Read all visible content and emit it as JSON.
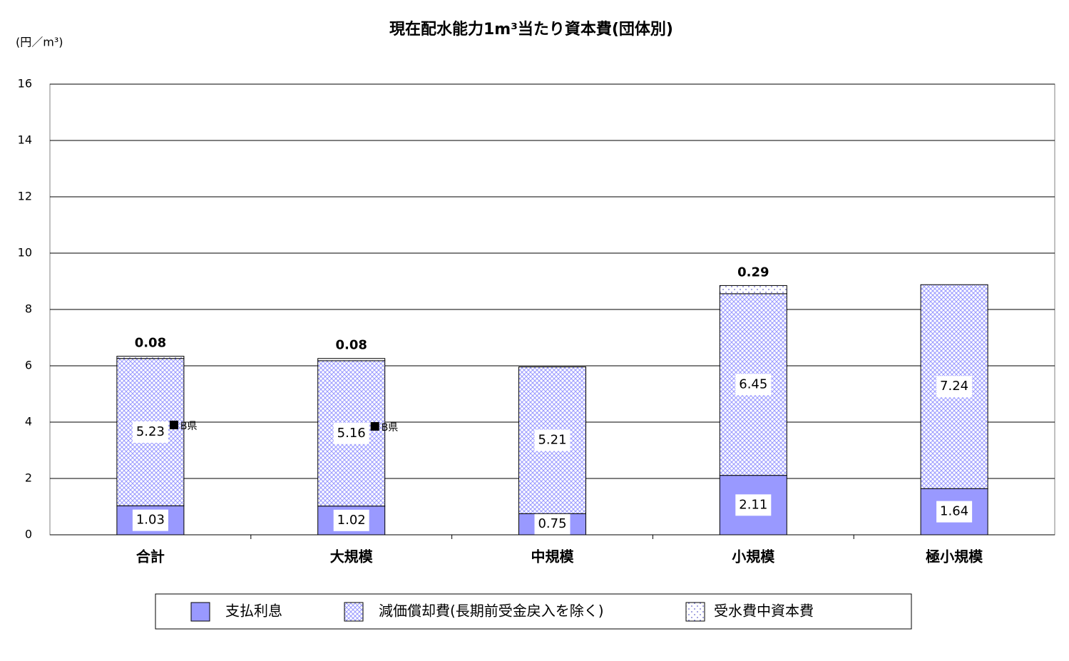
{
  "chart_data": {
    "type": "bar",
    "stacked": true,
    "title": "現在配水能力1m³当たり資本費(団体別)",
    "y_label": "(円／m³)",
    "categories": [
      "合計",
      "大規模",
      "中規模",
      "小規模",
      "極小規模"
    ],
    "series": [
      {
        "name": "支払利息",
        "color": "#9999ff",
        "pattern": "solid",
        "values": [
          1.03,
          1.02,
          0.75,
          2.11,
          1.64
        ]
      },
      {
        "name": "減価償却費(長期前受金戻入を除く)",
        "color": "#9999ff",
        "pattern": "crosshatch",
        "values": [
          5.23,
          5.16,
          5.21,
          6.45,
          7.24
        ]
      },
      {
        "name": "受水費中資本費",
        "color": "#6666cc",
        "pattern": "dots",
        "values": [
          0.08,
          0.08,
          0,
          0.29,
          0
        ]
      }
    ],
    "markers": {
      "label": "B県",
      "color": "#000000",
      "values": [
        3.9,
        3.85,
        null,
        null,
        null
      ]
    },
    "ylim": [
      0,
      16
    ],
    "yticks": [
      0,
      2,
      4,
      6,
      8,
      10,
      12,
      14,
      16
    ],
    "grid": true,
    "legend": "bottom"
  }
}
